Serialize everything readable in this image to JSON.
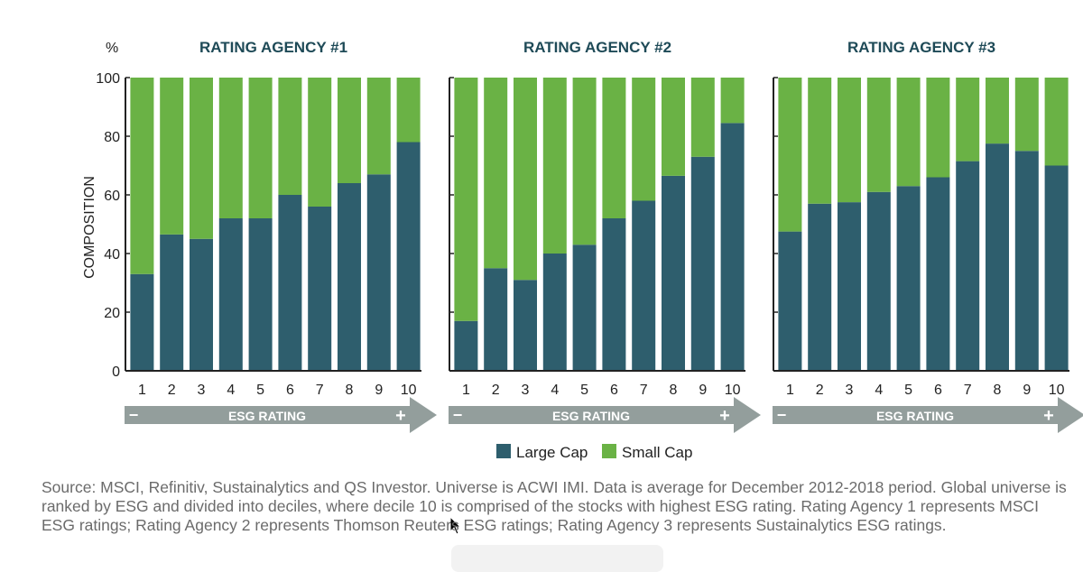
{
  "colors": {
    "large_cap": "#2e5e6d",
    "small_cap": "#6ab245",
    "arrow": "#939e9c",
    "title": "#1e4a57"
  },
  "y_unit": "%",
  "y_label": "COMPOSITION",
  "legend": [
    "Large Cap",
    "Small Cap"
  ],
  "source": "Source: MSCI, Refinitiv, Sustainalytics and QS Investor. Universe is ACWI IMI. Data is average for December 2012-2018 period. Global universe is ranked by ESG and divided into deciles, where decile 10 is comprised of the stocks with highest ESG rating. Rating Agency 1 represents MSCI ESG ratings; Rating Agency 2 represents Thomson Reuters ESG ratings; Rating Agency 3 represents Sustainalytics ESG ratings.",
  "arrow": {
    "label": "ESG RATING",
    "minus": "−",
    "plus": "+"
  },
  "chart_data": [
    {
      "type": "bar",
      "stacked": true,
      "title": "RATING AGENCY #1",
      "ylabel": "COMPOSITION",
      "ylim": [
        0,
        100
      ],
      "yticks": [
        0,
        20,
        40,
        60,
        80,
        100
      ],
      "categories": [
        "1",
        "2",
        "3",
        "4",
        "5",
        "6",
        "7",
        "8",
        "9",
        "10"
      ],
      "series": [
        {
          "name": "Large Cap",
          "values": [
            33,
            46.5,
            45,
            52,
            52,
            60,
            56,
            64,
            67,
            78
          ]
        },
        {
          "name": "Small Cap",
          "values": [
            67,
            53.5,
            55,
            48,
            48,
            40,
            44,
            36,
            33,
            22
          ]
        }
      ]
    },
    {
      "type": "bar",
      "stacked": true,
      "title": "RATING AGENCY #2",
      "ylim": [
        0,
        100
      ],
      "categories": [
        "1",
        "2",
        "3",
        "4",
        "5",
        "6",
        "7",
        "8",
        "9",
        "10"
      ],
      "series": [
        {
          "name": "Large Cap",
          "values": [
            17,
            35,
            31,
            40,
            43,
            52,
            58,
            66.5,
            73,
            84.5
          ]
        },
        {
          "name": "Small Cap",
          "values": [
            83,
            65,
            69,
            60,
            57,
            48,
            42,
            33.5,
            27,
            15.5
          ]
        }
      ]
    },
    {
      "type": "bar",
      "stacked": true,
      "title": "RATING AGENCY #3",
      "ylim": [
        0,
        100
      ],
      "categories": [
        "1",
        "2",
        "3",
        "4",
        "5",
        "6",
        "7",
        "8",
        "9",
        "10"
      ],
      "series": [
        {
          "name": "Large Cap",
          "values": [
            47.5,
            57,
            57.5,
            61,
            63,
            66,
            71.5,
            77.5,
            75,
            70
          ]
        },
        {
          "name": "Small Cap",
          "values": [
            52.5,
            43,
            42.5,
            39,
            37,
            34,
            28.5,
            22.5,
            25,
            30
          ]
        }
      ]
    }
  ]
}
